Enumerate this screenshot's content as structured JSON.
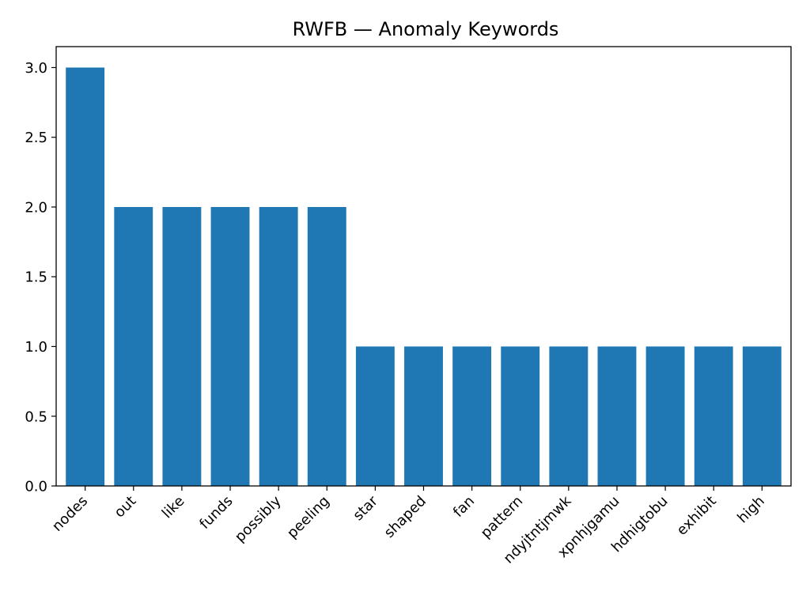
{
  "chart_data": {
    "type": "bar",
    "title": "RWFB — Anomaly Keywords",
    "xlabel": "",
    "ylabel": "",
    "categories": [
      "nodes",
      "out",
      "like",
      "funds",
      "possibly",
      "peeling",
      "star",
      "shaped",
      "fan",
      "pattern",
      "ndyjtntjmwk",
      "xpnhjgamu",
      "hdhigtobu",
      "exhibit",
      "high"
    ],
    "values": [
      3,
      2,
      2,
      2,
      2,
      2,
      1,
      1,
      1,
      1,
      1,
      1,
      1,
      1,
      1
    ],
    "ylim": [
      0,
      3.15
    ],
    "yticks": [
      0.0,
      0.5,
      1.0,
      1.5,
      2.0,
      2.5,
      3.0
    ],
    "ytick_labels": [
      "0.0",
      "0.5",
      "1.0",
      "1.5",
      "2.0",
      "2.5",
      "3.0"
    ],
    "grid": false,
    "bar_color": "#1f77b4"
  }
}
